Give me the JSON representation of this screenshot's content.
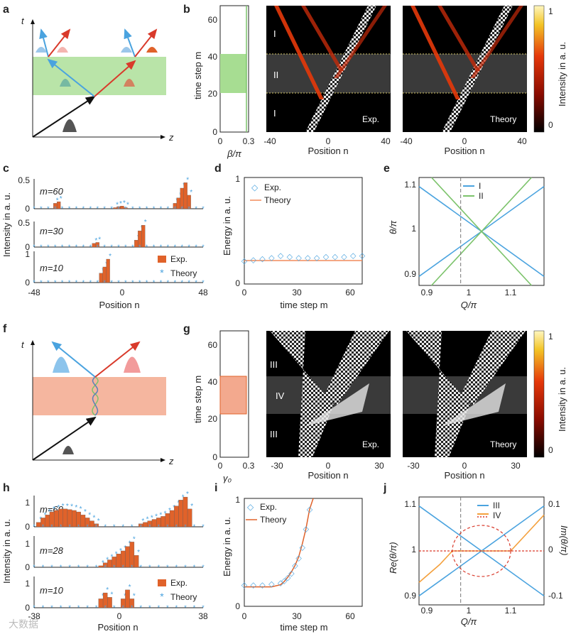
{
  "panel_labels": [
    "a",
    "b",
    "c",
    "d",
    "e",
    "f",
    "g",
    "h",
    "i",
    "j"
  ],
  "panel_a": {
    "t_label": "t",
    "z_label": "z"
  },
  "panel_b": {
    "ylabel": "time step m",
    "yticks": [
      "0",
      "20",
      "40",
      "60"
    ],
    "beta_label": "β/π",
    "beta_ticks": [
      "0",
      "0.3"
    ],
    "heat_xticks": [
      "-40",
      "0",
      "40"
    ],
    "xlabel": "Position n",
    "region_labels": [
      "I",
      "II",
      "I"
    ],
    "exp_label": "Exp.",
    "theory_label": "Theory",
    "colorbar_label": "Intensity in a. u.",
    "colorbar_ticks": [
      "0",
      "1"
    ]
  },
  "panel_c": {
    "ylabel": "Intensity in a. u.",
    "xlabel": "Position n",
    "xticks": [
      "-48",
      "0",
      "48"
    ],
    "rows": [
      {
        "m": "m=60",
        "yticks": [
          "0",
          "0.5"
        ]
      },
      {
        "m": "m=30",
        "yticks": [
          "0",
          "0.5"
        ]
      },
      {
        "m": "m=10",
        "yticks": [
          "0",
          "1"
        ]
      }
    ],
    "legend": [
      "Exp.",
      "Theory"
    ]
  },
  "panel_d": {
    "ylabel": "Energy in a. u.",
    "xlabel": "time step m",
    "xticks": [
      "0",
      "30",
      "60"
    ],
    "yticks": [
      "0",
      "1"
    ],
    "legend": [
      "Exp.",
      "Theory"
    ]
  },
  "panel_e": {
    "ylabel": "θ/π",
    "xlabel": "Q/π",
    "xticks": [
      "0.9",
      "1",
      "1.1"
    ],
    "yticks": [
      "0.9",
      "1",
      "1.1"
    ],
    "legend": [
      "I",
      "II"
    ]
  },
  "panel_f": {
    "t_label": "t",
    "z_label": "z"
  },
  "panel_g": {
    "ylabel": "time step m",
    "yticks": [
      "0",
      "20",
      "40",
      "60"
    ],
    "gamma_label": "γ₀",
    "gamma_ticks": [
      "0",
      "0.3"
    ],
    "heat_xticks": [
      "-30",
      "0",
      "30"
    ],
    "xlabel": "Position n",
    "region_labels": [
      "III",
      "IV",
      "III"
    ],
    "exp_label": "Exp.",
    "theory_label": "Theory",
    "colorbar_label": "Intensity in a. u.",
    "colorbar_ticks": [
      "0",
      "1"
    ]
  },
  "panel_h": {
    "ylabel": "Intensity in a. u.",
    "xlabel": "Position n",
    "xticks": [
      "-38",
      "0",
      "38"
    ],
    "rows": [
      {
        "m": "m=60",
        "yticks": [
          "0",
          "1"
        ]
      },
      {
        "m": "m=28",
        "yticks": [
          "0",
          "1"
        ]
      },
      {
        "m": "m=10",
        "yticks": [
          "0",
          "1"
        ]
      }
    ],
    "legend": [
      "Exp.",
      "Theory"
    ]
  },
  "panel_i": {
    "ylabel": "Energy in a. u.",
    "xlabel": "time step m",
    "xticks": [
      "0",
      "30",
      "60"
    ],
    "yticks": [
      "0",
      "1"
    ],
    "legend": [
      "Exp.",
      "Theory"
    ]
  },
  "panel_j": {
    "ylabel_left": "Re(θ/π)",
    "ylabel_right": "Im(θ/π)",
    "xlabel": "Q/π",
    "xticks": [
      "0.9",
      "1",
      "1.1"
    ],
    "yticks_left": [
      "0.9",
      "1",
      "1.1"
    ],
    "yticks_right": [
      "-0.1",
      "0",
      "0.1"
    ],
    "legend": [
      "III",
      "IV"
    ]
  },
  "watermark": "大数据",
  "colors": {
    "blue": "#4aa3df",
    "red": "#d93a2b",
    "green": "#7cc36b",
    "orange": "#f4a03c",
    "bar": "#e0622a",
    "green_band": "#a7dd92",
    "red_band": "#f3a98e"
  },
  "chart_data": [
    {
      "panel": "c",
      "type": "bar",
      "x_range": [
        -48,
        48
      ],
      "series": [
        {
          "name": "Exp.",
          "rows": {
            "m=60": [
              [
                -36,
                0.1
              ],
              [
                -34,
                0.13
              ],
              [
                -2,
                0.02
              ],
              [
                0,
                0.04
              ],
              [
                2,
                0.05
              ],
              [
                4,
                0.02
              ],
              [
                32,
                0.1
              ],
              [
                34,
                0.2
              ],
              [
                36,
                0.38
              ],
              [
                38,
                0.48
              ],
              [
                40,
                0.25
              ]
            ],
            "m=30": [
              [
                -14,
                0.08
              ],
              [
                -12,
                0.1
              ],
              [
                10,
                0.15
              ],
              [
                12,
                0.35
              ],
              [
                14,
                0.47
              ]
            ],
            "m=10": [
              [
                -10,
                0.3
              ],
              [
                -8,
                0.5
              ],
              [
                -6,
                0.75
              ]
            ]
          }
        }
      ]
    },
    {
      "panel": "d",
      "type": "line",
      "x_range": [
        0,
        65
      ],
      "y_range": [
        0,
        1
      ],
      "series": [
        {
          "name": "Exp.",
          "x": [
            0,
            5,
            10,
            15,
            20,
            25,
            30,
            35,
            40,
            45,
            50,
            55,
            60,
            65
          ],
          "y": [
            0.22,
            0.23,
            0.24,
            0.25,
            0.27,
            0.26,
            0.25,
            0.25,
            0.25,
            0.26,
            0.26,
            0.26,
            0.27,
            0.27
          ]
        },
        {
          "name": "Theory",
          "x": [
            0,
            65
          ],
          "y": [
            0.22,
            0.22
          ]
        }
      ]
    },
    {
      "panel": "e",
      "type": "line",
      "x_range": [
        0.85,
        1.15
      ],
      "y_range": [
        0.88,
        1.12
      ],
      "series": [
        {
          "name": "I",
          "x": [
            0.85,
            1.15
          ],
          "y": [
            1.1,
            0.9
          ]
        },
        {
          "name": "I",
          "x": [
            0.85,
            1.15
          ],
          "y": [
            0.9,
            1.1
          ]
        },
        {
          "name": "II",
          "x": [
            0.88,
            1.12
          ],
          "y": [
            1.12,
            0.88
          ]
        },
        {
          "name": "II",
          "x": [
            0.88,
            1.12
          ],
          "y": [
            0.88,
            1.12
          ]
        }
      ]
    },
    {
      "panel": "h",
      "type": "bar",
      "x_range": [
        -38,
        38
      ],
      "series": [
        {
          "name": "Exp.",
          "rows": {
            "m=60": [
              [
                -36,
                0.15
              ],
              [
                -34,
                0.3
              ],
              [
                -32,
                0.4
              ],
              [
                -30,
                0.5
              ],
              [
                -28,
                0.55
              ],
              [
                -26,
                0.6
              ],
              [
                -24,
                0.6
              ],
              [
                -22,
                0.58
              ],
              [
                -20,
                0.55
              ],
              [
                -18,
                0.5
              ],
              [
                -16,
                0.4
              ],
              [
                -14,
                0.3
              ],
              [
                -12,
                0.2
              ],
              [
                -10,
                0.1
              ],
              [
                10,
                0.1
              ],
              [
                12,
                0.15
              ],
              [
                14,
                0.2
              ],
              [
                16,
                0.25
              ],
              [
                18,
                0.3
              ],
              [
                20,
                0.35
              ],
              [
                22,
                0.45
              ],
              [
                24,
                0.55
              ],
              [
                26,
                0.7
              ],
              [
                28,
                0.9
              ],
              [
                30,
                1.0
              ],
              [
                32,
                0.6
              ]
            ],
            "m=28": [
              [
                -8,
                0.05
              ],
              [
                -6,
                0.15
              ],
              [
                -4,
                0.25
              ],
              [
                -2,
                0.35
              ],
              [
                0,
                0.45
              ],
              [
                2,
                0.55
              ],
              [
                4,
                0.7
              ],
              [
                6,
                0.85
              ],
              [
                8,
                0.4
              ]
            ],
            "m=10": [
              [
                -8,
                0.3
              ],
              [
                -6,
                0.5
              ],
              [
                -4,
                0.35
              ],
              [
                2,
                0.3
              ],
              [
                4,
                0.6
              ],
              [
                6,
                0.3
              ]
            ]
          }
        }
      ]
    },
    {
      "panel": "i",
      "type": "line",
      "x_range": [
        0,
        65
      ],
      "y_range": [
        0,
        1
      ],
      "series": [
        {
          "name": "Exp.",
          "x": [
            0,
            5,
            10,
            15,
            20,
            22,
            24,
            26,
            28,
            30,
            32,
            34,
            36
          ],
          "y": [
            0.2,
            0.2,
            0.2,
            0.21,
            0.22,
            0.24,
            0.27,
            0.31,
            0.38,
            0.45,
            0.55,
            0.72,
            0.9
          ]
        },
        {
          "name": "Theory",
          "x": [
            0,
            5,
            10,
            15,
            20,
            22,
            24,
            26,
            28,
            30,
            32,
            34,
            36,
            38
          ],
          "y": [
            0.18,
            0.18,
            0.18,
            0.18,
            0.2,
            0.23,
            0.27,
            0.32,
            0.38,
            0.46,
            0.58,
            0.72,
            0.9,
            1.05
          ]
        }
      ]
    },
    {
      "panel": "j",
      "type": "line",
      "x_range": [
        0.85,
        1.15
      ],
      "y_range": [
        0.88,
        1.12
      ],
      "series": [
        {
          "name": "III",
          "x": [
            0.85,
            1.15
          ],
          "y": [
            1.1,
            0.9
          ]
        },
        {
          "name": "III",
          "x": [
            0.85,
            1.15
          ],
          "y": [
            0.9,
            1.1
          ]
        },
        {
          "name": "IV",
          "x": [
            0.85,
            0.9,
            0.93
          ],
          "y": [
            0.93,
            0.97,
            1.0
          ]
        },
        {
          "name": "IV",
          "x": [
            1.07,
            1.1,
            1.15
          ],
          "y": [
            1.0,
            1.03,
            1.08
          ]
        }
      ]
    }
  ]
}
